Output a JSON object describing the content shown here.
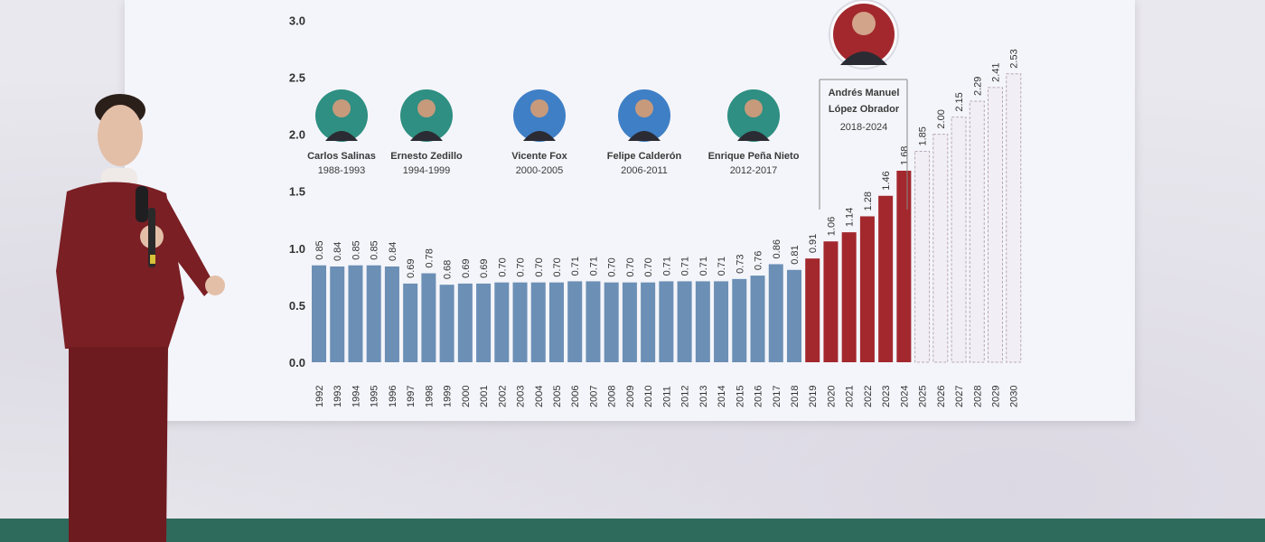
{
  "chart_data": {
    "type": "bar",
    "categories": [
      "1992",
      "1993",
      "1994",
      "1995",
      "1996",
      "1997",
      "1998",
      "1999",
      "2000",
      "2001",
      "2002",
      "2003",
      "2004",
      "2005",
      "2006",
      "2007",
      "2008",
      "2009",
      "2010",
      "2011",
      "2012",
      "2013",
      "2014",
      "2015",
      "2016",
      "2017",
      "2018",
      "2019",
      "2020",
      "2021",
      "2022",
      "2023",
      "2024",
      "2025",
      "2026",
      "2027",
      "2028",
      "2029",
      "2030"
    ],
    "values": [
      0.85,
      0.84,
      0.85,
      0.85,
      0.84,
      0.69,
      0.78,
      0.68,
      0.69,
      0.69,
      0.7,
      0.7,
      0.7,
      0.7,
      0.71,
      0.71,
      0.7,
      0.7,
      0.7,
      0.71,
      0.71,
      0.71,
      0.71,
      0.73,
      0.76,
      0.86,
      0.81,
      0.91,
      1.06,
      1.14,
      1.28,
      1.46,
      1.68,
      1.85,
      2.0,
      2.15,
      2.29,
      2.41,
      2.53
    ],
    "value_labels": [
      "0.85",
      "0.84",
      "0.85",
      "0.85",
      "0.84",
      "0.69",
      "0.78",
      "0.68",
      "0.69",
      "0.69",
      "0.70",
      "0.70",
      "0.70",
      "0.70",
      "0.71",
      "0.71",
      "0.70",
      "0.70",
      "0.70",
      "0.71",
      "0.71",
      "0.71",
      "0.71",
      "0.73",
      "0.76",
      "0.86",
      "0.81",
      "0.91",
      "1.06",
      "1.14",
      "1.28",
      "1.46",
      "1.68",
      "1.85",
      "2.00",
      "2.15",
      "2.29",
      "2.41",
      "2.53"
    ],
    "bar_groups": [
      "past",
      "past",
      "past",
      "past",
      "past",
      "past",
      "past",
      "past",
      "past",
      "past",
      "past",
      "past",
      "past",
      "past",
      "past",
      "past",
      "past",
      "past",
      "past",
      "past",
      "past",
      "past",
      "past",
      "past",
      "past",
      "past",
      "past",
      "amlo",
      "amlo",
      "amlo",
      "amlo",
      "amlo",
      "amlo",
      "projected",
      "projected",
      "projected",
      "projected",
      "projected",
      "projected"
    ],
    "y_ticks": [
      "0.0",
      "0.5",
      "1.0",
      "1.5",
      "2.0",
      "2.5",
      "3.0"
    ],
    "ylim": [
      0,
      3.0
    ],
    "grid": false,
    "title": "",
    "xlabel": "",
    "ylabel": "",
    "colors": {
      "past": "#6b8fb5",
      "amlo": "#a3282d",
      "projected_fill": "#f2eef5",
      "projected_stroke": "#b8a8b8",
      "text": "#333333",
      "screen": "#f4f5fa"
    },
    "presidents": [
      {
        "name": "Carlos Salinas",
        "years": "1988-1993"
      },
      {
        "name": "Ernesto Zedillo",
        "years": "1994-1999"
      },
      {
        "name": "Vicente Fox",
        "years": "2000-2005"
      },
      {
        "name": "Felipe Calderón",
        "years": "2006-2011"
      },
      {
        "name": "Enrique Peña Nieto",
        "years": "2012-2017"
      }
    ],
    "highlight": {
      "name_line1": "Andrés Manuel",
      "name_line2": "López Obrador",
      "years": "2018-2024"
    }
  }
}
